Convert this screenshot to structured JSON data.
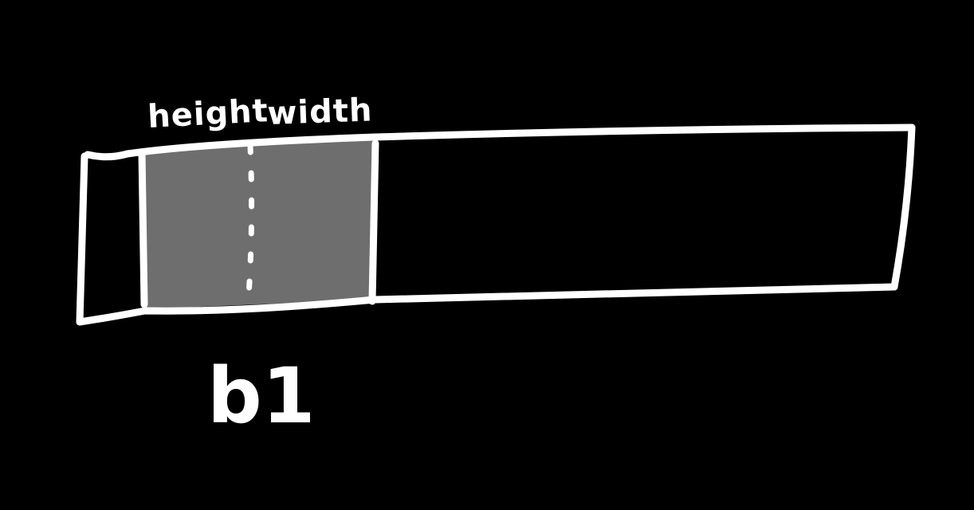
{
  "diagram": {
    "background_color": "#000000",
    "stroke_color": "#ffffff",
    "highlight_color": "#6e6e6e",
    "labels": {
      "height": "height",
      "width": "width",
      "name": "b1"
    }
  }
}
